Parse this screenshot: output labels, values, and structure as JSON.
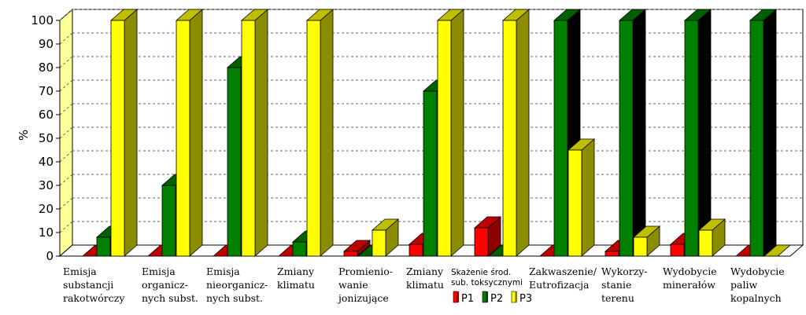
{
  "chart_data": {
    "type": "bar",
    "title": "",
    "xlabel": "",
    "ylabel": "%",
    "ylim": [
      0,
      100
    ],
    "yticks": [
      "0",
      "10",
      "20",
      "30",
      "40",
      "50",
      "60",
      "70",
      "80",
      "90",
      "100"
    ],
    "grid": true,
    "legend_position": "bottom",
    "categories": [
      [
        "Emisja",
        "substancji",
        "rakotwórczy"
      ],
      [
        "Emisja",
        "organicz-",
        "nych subst."
      ],
      [
        "Emisja",
        "nieorganicz-",
        "nych subst."
      ],
      [
        "Zmiany",
        "klimatu"
      ],
      [
        "Promienio-",
        "wanie",
        "jonizujące"
      ],
      [
        "Zmiany",
        "klimatu"
      ],
      [
        "Skażenie środ.",
        "sub. toksycznymi"
      ],
      [
        "Zakwaszenie/",
        "Eutrofizacja"
      ],
      [
        "Wykorzy-",
        "stanie",
        "terenu"
      ],
      [
        "Wydobycie",
        "minerałów"
      ],
      [
        "Wydobycie",
        "paliw",
        "kopalnych"
      ]
    ],
    "series": [
      {
        "name": "P1",
        "color": "#ff0000",
        "values": [
          0,
          0,
          0,
          0,
          2,
          5,
          12,
          0,
          2,
          5,
          0
        ]
      },
      {
        "name": "P2",
        "color": "#008000",
        "values": [
          8,
          30,
          80,
          6,
          0,
          70,
          0,
          100,
          100,
          100,
          100
        ]
      },
      {
        "name": "P3",
        "color": "#ffff00",
        "values": [
          100,
          100,
          100,
          100,
          11,
          100,
          100,
          45,
          8,
          11,
          0
        ]
      }
    ]
  }
}
